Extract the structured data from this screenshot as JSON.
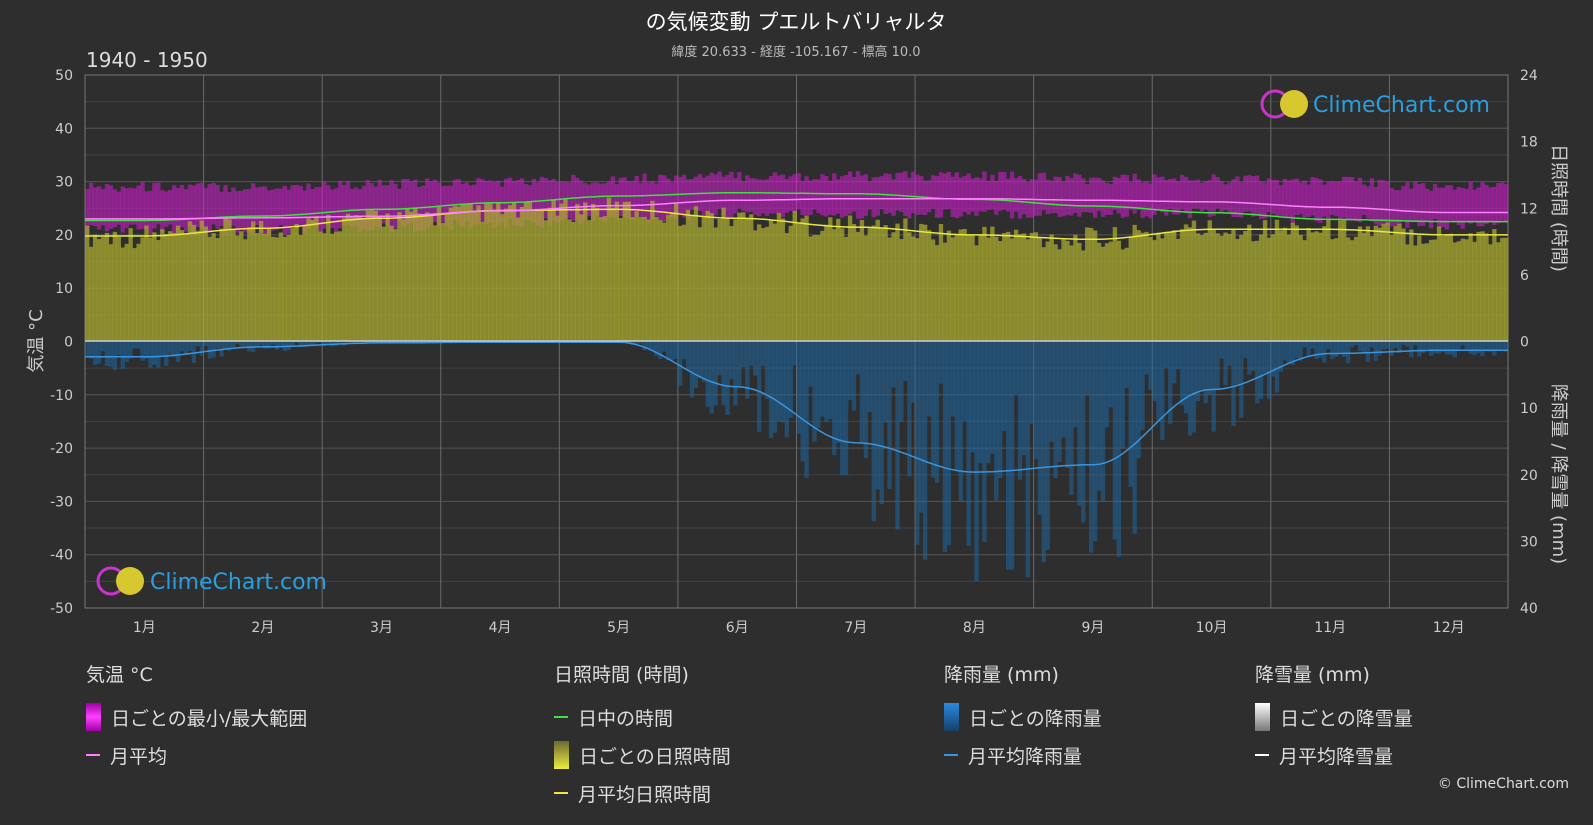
{
  "header": {
    "title": "の気候変動 プエルトバリャルタ",
    "subtitle": "緯度 20.633 - 経度 -105.167 - 標高 10.0",
    "period": "1940 - 1950"
  },
  "brand": {
    "name": "ClimeChart.com",
    "copyright": "© ClimeChart.com"
  },
  "colors": {
    "temp_range": "#d21fd2",
    "temp_avg": "#ff80ff",
    "daylight": "#44dd44",
    "sunshine_fill": "#a8a830",
    "sunshine_avg": "#e8e840",
    "rain_fill": "#1e6aa8",
    "rain_avg": "#3a95e0",
    "snow_avg": "#ffffff"
  },
  "chart_data": {
    "type": "line",
    "categories": [
      "1月",
      "2月",
      "3月",
      "4月",
      "5月",
      "6月",
      "7月",
      "8月",
      "9月",
      "10月",
      "11月",
      "12月"
    ],
    "axes": {
      "left": {
        "title": "気温 °C",
        "ticks": [
          50,
          40,
          30,
          20,
          10,
          0,
          -10,
          -20,
          -30,
          -40,
          -50
        ],
        "range": [
          -50,
          50
        ]
      },
      "right_top": {
        "title": "日照時間 (時間)",
        "ticks": [
          24,
          18,
          12,
          6,
          0
        ],
        "range": [
          0,
          24
        ]
      },
      "right_bottom": {
        "title": "降雨量 / 降雪量 (mm)",
        "ticks": [
          0,
          10,
          20,
          30,
          40
        ],
        "range": [
          0,
          40
        ]
      }
    },
    "series": [
      {
        "name": "日ごとの最小/最大範囲",
        "min": [
          21,
          21,
          21.5,
          22,
          23,
          24,
          24,
          24,
          24,
          24,
          23,
          22
        ],
        "max": [
          29,
          29,
          29.5,
          30,
          30.5,
          31,
          31,
          31,
          30.5,
          30.5,
          30,
          29
        ]
      },
      {
        "name": "月平均",
        "values": [
          23,
          23.2,
          23.5,
          24.5,
          25.5,
          26.5,
          26.8,
          26.8,
          26.5,
          26.2,
          25.2,
          24.2
        ]
      },
      {
        "name": "日中の時間",
        "values": [
          10.9,
          11.3,
          11.9,
          12.5,
          13.1,
          13.4,
          13.3,
          12.8,
          12.2,
          11.6,
          11.0,
          10.8
        ]
      },
      {
        "name": "月平均日照時間",
        "values": [
          9.5,
          10.2,
          11.1,
          11.8,
          11.9,
          11.1,
          10.3,
          9.6,
          9.2,
          10.1,
          10.1,
          9.6
        ]
      },
      {
        "name": "月平均降雨量",
        "values": [
          2.3,
          0.8,
          0.2,
          0.1,
          0.1,
          6.8,
          15.2,
          19.6,
          18.5,
          7.2,
          1.8,
          1.3
        ]
      },
      {
        "name": "月平均降雪量",
        "values": [
          0,
          0,
          0,
          0,
          0,
          0,
          0,
          0,
          0,
          0,
          0,
          0
        ]
      }
    ]
  },
  "legend": {
    "temperature": {
      "title": "気温 °C",
      "items": [
        "日ごとの最小/最大範囲",
        "月平均"
      ]
    },
    "sunshine": {
      "title": "日照時間 (時間)",
      "items": [
        "日中の時間",
        "日ごとの日照時間",
        "月平均日照時間"
      ]
    },
    "rain": {
      "title": "降雨量 (mm)",
      "items": [
        "日ごとの降雨量",
        "月平均降雨量"
      ]
    },
    "snow": {
      "title": "降雪量 (mm)",
      "items": [
        "日ごとの降雪量",
        "月平均降雪量"
      ]
    }
  }
}
